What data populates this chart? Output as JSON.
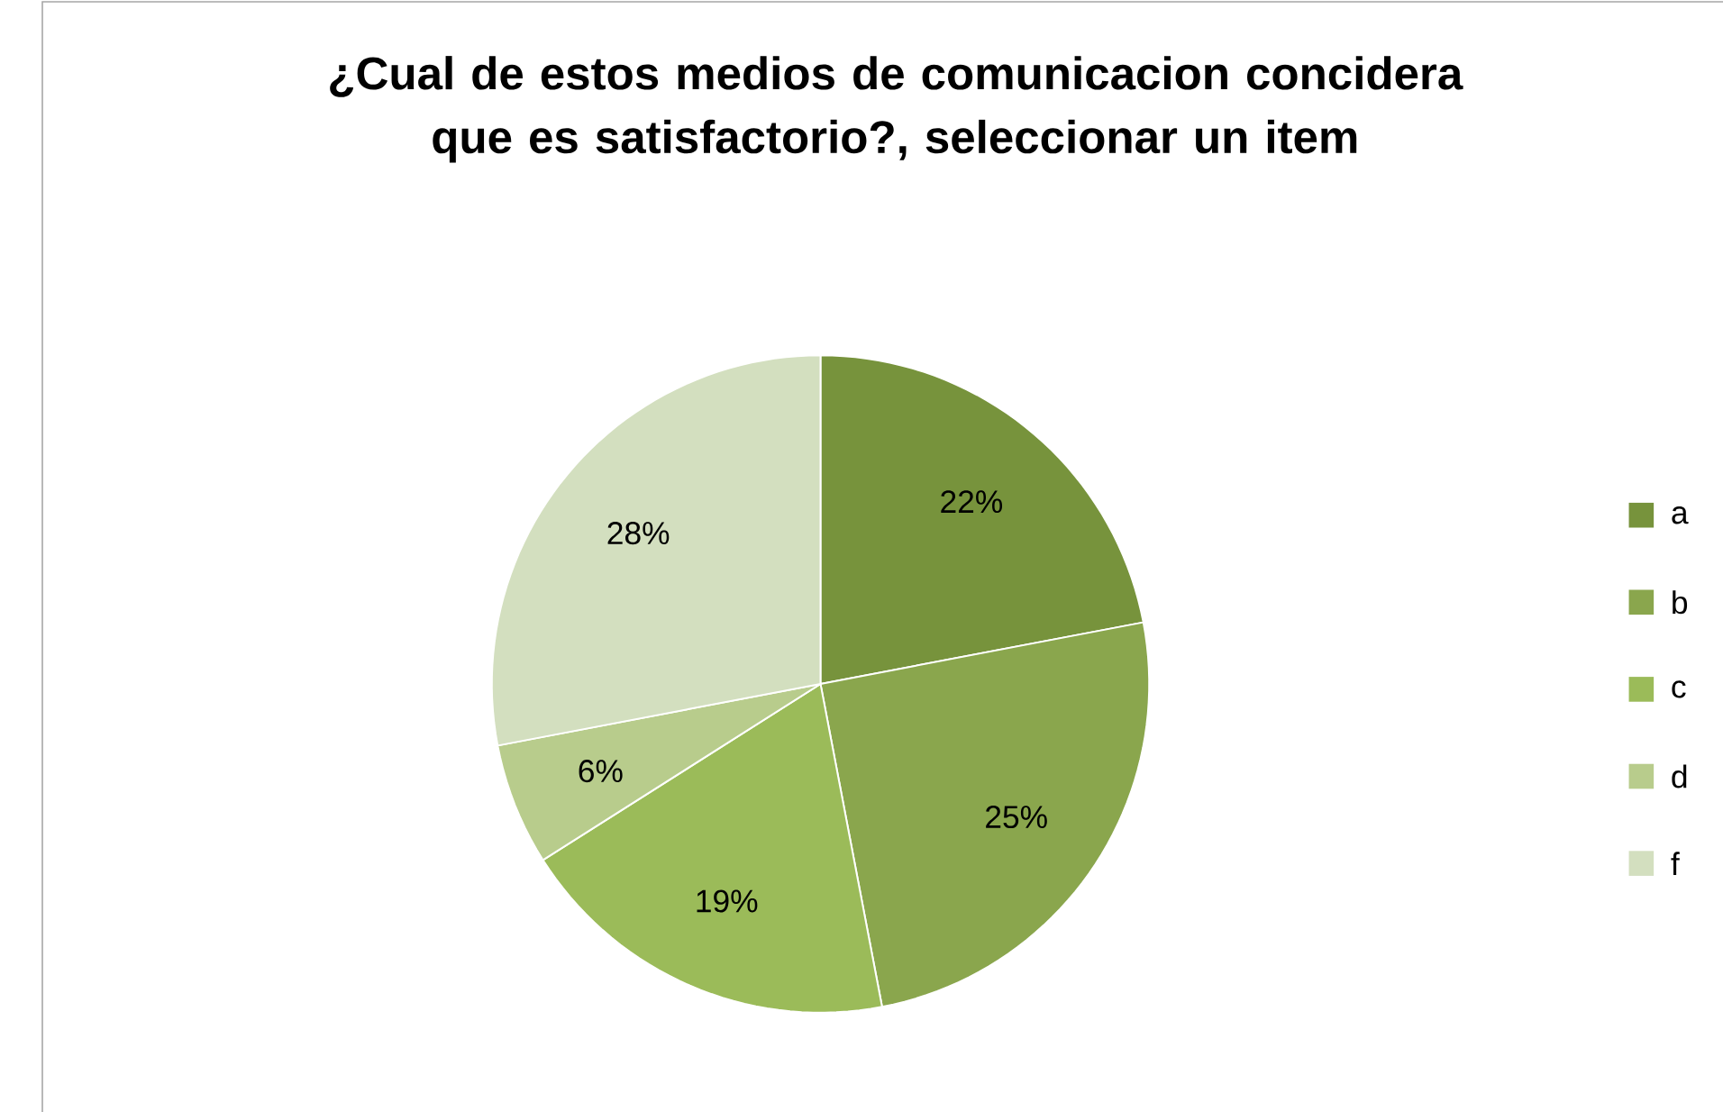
{
  "chart_data": {
    "type": "pie",
    "title": "¿Cual de estos medios de comunicacion concidera que es satisfactorio?, seleccionar un item",
    "categories": [
      "a",
      "b",
      "c",
      "d",
      "f"
    ],
    "values": [
      22,
      25,
      19,
      6,
      28
    ],
    "value_labels": [
      "22%",
      "25%",
      "19%",
      "6%",
      "28%"
    ],
    "colors": [
      "#77933c",
      "#8aa64d",
      "#9bbb59",
      "#b8cc8c",
      "#d3dfbf"
    ],
    "legend": "right"
  }
}
